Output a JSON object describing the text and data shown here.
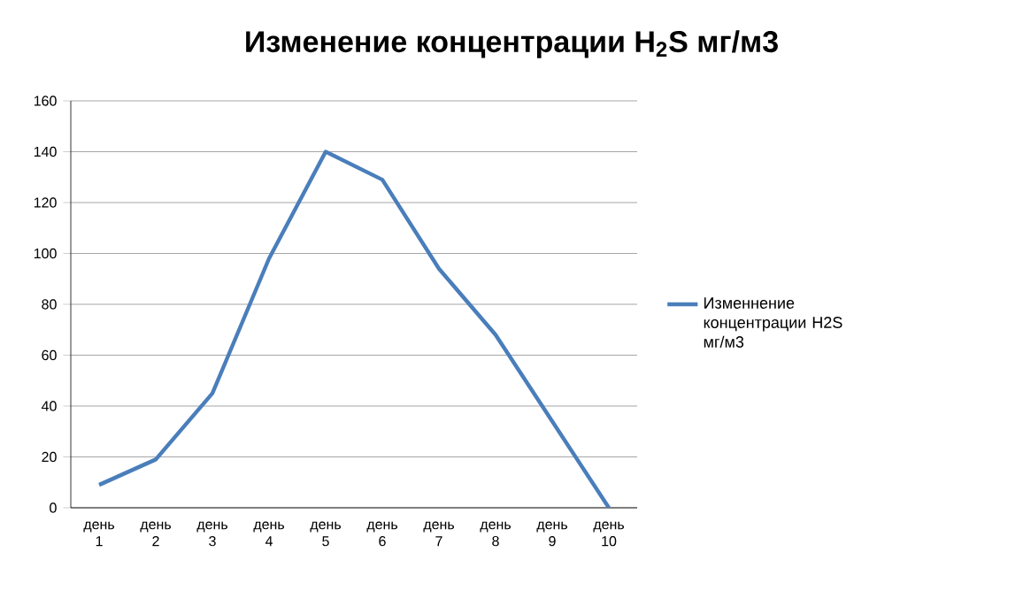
{
  "chart_data": {
    "type": "line",
    "title": "Изменение концентрации H$_{2}$S мг/м3",
    "categories": [
      "день 1",
      "день 2",
      "день 3",
      "день 4",
      "день 5",
      "день 6",
      "день 7",
      "день 8",
      "день 9",
      "день 10"
    ],
    "series": [
      {
        "name": "Изменнение концентрации H2S мг/м3",
        "color": "#4a7ebb",
        "values": [
          9,
          19,
          45,
          98,
          140,
          129,
          94,
          68,
          34,
          0
        ]
      }
    ],
    "ylim": [
      0,
      160
    ],
    "yticks": [
      0,
      20,
      40,
      60,
      80,
      100,
      120,
      140,
      160
    ],
    "grid": "y",
    "legend": "right",
    "marker": "none",
    "line_style": "solid"
  }
}
